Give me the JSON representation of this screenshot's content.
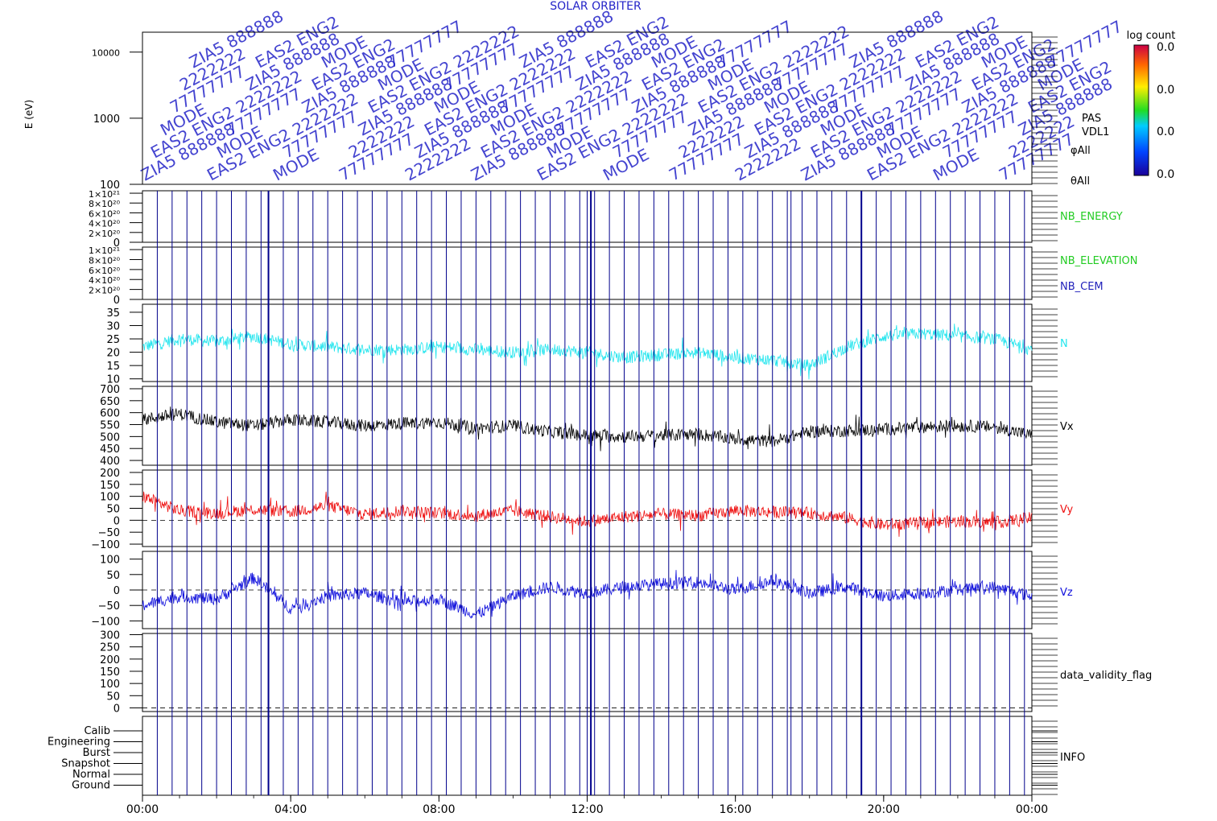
{
  "header": {
    "title": "SOLAR ORBITER",
    "overlay_text": "EAS2 ENG2 MODE ZIA5 888888 77777777 2222222"
  },
  "colors": {
    "axis": "#000000",
    "overlay_blue": "#2424c8",
    "event_line": "#00008b",
    "density": "#22e5ee",
    "vx": "#000000",
    "vy": "#ee1111",
    "vz": "#1111dd",
    "label_green": "#22cc22",
    "label_blue": "#2222bb"
  },
  "colorbar": {
    "title": "log count",
    "ticks": [
      "0.0",
      "0.0",
      "0.0",
      "0.0"
    ]
  },
  "spectrogram_labels": [
    "PAS",
    "VDL1",
    "φAll",
    "θAll"
  ],
  "chart_data": [
    {
      "id": "spectrogram",
      "type": "heatmap",
      "ylabel": "E (eV)",
      "yscale": "log",
      "ylim": [
        100,
        20000
      ],
      "yticks": [
        "10000",
        "1000",
        "100"
      ],
      "ytick_values": [
        10000,
        1000,
        100
      ]
    },
    {
      "id": "nb_energy",
      "type": "line",
      "ylim": [
        0,
        1.05e+21
      ],
      "ytick_values": [
        1e+21,
        8e+20,
        6e+20,
        4e+20,
        2e+20,
        0
      ],
      "yticks": [
        "1×10²¹",
        "8×10²⁰",
        "6×10²⁰",
        "4×10²⁰",
        "2×10²⁰",
        "0"
      ],
      "series": [
        {
          "name": "NB_ENERGY",
          "color": "#22cc22",
          "values": []
        }
      ]
    },
    {
      "id": "nb_elevation",
      "type": "line",
      "ylim": [
        0,
        1.05e+21
      ],
      "ytick_values": [
        1e+21,
        8e+20,
        6e+20,
        4e+20,
        2e+20,
        0
      ],
      "yticks": [
        "1×10²¹",
        "8×10²⁰",
        "6×10²⁰",
        "4×10²⁰",
        "2×10²⁰",
        "0"
      ],
      "series": [
        {
          "name": "NB_ELEVATION",
          "color": "#22cc22",
          "values": []
        },
        {
          "name": "NB_CEM",
          "color": "#2222bb",
          "values": []
        }
      ]
    },
    {
      "id": "density",
      "type": "line",
      "ylim": [
        9,
        38
      ],
      "ytick_values": [
        35,
        30,
        25,
        20,
        15,
        10
      ],
      "yticks": [
        "35",
        "30",
        "25",
        "20",
        "15",
        "10"
      ],
      "series": [
        {
          "name": "N",
          "color": "#22e5ee",
          "x": [
            0,
            1,
            2,
            3,
            4,
            5,
            6,
            7,
            8,
            9,
            10,
            11,
            12,
            13,
            14,
            15,
            16,
            17,
            18,
            19,
            20,
            21,
            22,
            23,
            24
          ],
          "values": [
            22,
            25,
            24,
            26,
            23,
            22,
            21,
            21,
            22,
            21,
            20,
            21,
            20,
            18,
            19,
            20,
            18,
            17,
            15,
            22,
            26,
            27,
            26,
            25,
            21
          ]
        }
      ]
    },
    {
      "id": "vx",
      "type": "line",
      "ylim": [
        380,
        710
      ],
      "ytick_values": [
        700,
        650,
        600,
        550,
        500,
        450,
        400
      ],
      "yticks": [
        "700",
        "650",
        "600",
        "550",
        "500",
        "450",
        "400"
      ],
      "series": [
        {
          "name": "Vx",
          "color": "#000000",
          "x": [
            0,
            1,
            2,
            3,
            4,
            5,
            6,
            7,
            8,
            9,
            10,
            11,
            12,
            13,
            14,
            15,
            16,
            17,
            18,
            19,
            20,
            21,
            22,
            23,
            24
          ],
          "values": [
            570,
            595,
            560,
            545,
            570,
            560,
            545,
            555,
            560,
            535,
            545,
            520,
            505,
            500,
            505,
            510,
            490,
            480,
            520,
            525,
            530,
            540,
            545,
            540,
            505
          ]
        }
      ]
    },
    {
      "id": "vy",
      "type": "line",
      "ylim": [
        -110,
        210
      ],
      "ytick_values": [
        200,
        150,
        100,
        50,
        0,
        -50,
        -100
      ],
      "yticks": [
        "200",
        "150",
        "100",
        "50",
        "0",
        "−50",
        "−100"
      ],
      "series": [
        {
          "name": "Vy",
          "color": "#ee1111",
          "x": [
            0,
            1,
            2,
            3,
            4,
            5,
            6,
            7,
            8,
            9,
            10,
            11,
            12,
            13,
            14,
            15,
            16,
            17,
            18,
            19,
            20,
            21,
            22,
            23,
            24
          ],
          "values": [
            100,
            40,
            30,
            45,
            35,
            60,
            25,
            40,
            30,
            20,
            40,
            15,
            -5,
            15,
            25,
            20,
            40,
            35,
            30,
            10,
            -20,
            -10,
            -5,
            -10,
            10
          ]
        }
      ]
    },
    {
      "id": "vz",
      "type": "line",
      "ylim": [
        -125,
        125
      ],
      "ytick_values": [
        100,
        50,
        0,
        -50,
        -100
      ],
      "yticks": [
        "100",
        "50",
        "0",
        "−50",
        "−100"
      ],
      "series": [
        {
          "name": "Vz",
          "color": "#1111dd",
          "x": [
            0,
            1,
            2,
            3,
            4,
            5,
            6,
            7,
            8,
            9,
            10,
            11,
            12,
            13,
            14,
            15,
            16,
            17,
            18,
            19,
            20,
            21,
            22,
            23,
            24
          ],
          "values": [
            -50,
            -20,
            -30,
            40,
            -60,
            -20,
            -10,
            -40,
            -30,
            -80,
            -20,
            10,
            -10,
            10,
            20,
            25,
            0,
            30,
            -10,
            10,
            -20,
            -10,
            0,
            10,
            -20
          ]
        }
      ]
    },
    {
      "id": "data_validity",
      "type": "line",
      "ylim": [
        -15,
        305
      ],
      "ytick_values": [
        300,
        250,
        200,
        150,
        100,
        50,
        0
      ],
      "yticks": [
        "300",
        "250",
        "200",
        "150",
        "100",
        "50",
        "0"
      ],
      "series": [
        {
          "name": "data_validity_flag",
          "color": "#000000",
          "values": []
        }
      ]
    },
    {
      "id": "info",
      "type": "table",
      "rows": [
        "Calib",
        "Engineering",
        "Burst",
        "Snapshot",
        "Normal",
        "Ground"
      ],
      "series": [
        {
          "name": "INFO",
          "color": "#000000",
          "values": []
        }
      ]
    }
  ],
  "x_axis": {
    "ticks": [
      "00:00",
      "04:00",
      "08:00",
      "12:00",
      "16:00",
      "20:00",
      "00:00"
    ],
    "tick_hours": [
      0,
      4,
      8,
      12,
      16,
      20,
      24
    ]
  },
  "event_lines_hours": [
    0.4,
    0.8,
    1.2,
    1.6,
    2.0,
    2.4,
    2.8,
    3.2,
    3.4,
    3.8,
    4.2,
    4.6,
    5.0,
    5.4,
    5.8,
    6.2,
    6.6,
    7.0,
    7.4,
    7.8,
    8.2,
    8.6,
    9.0,
    9.4,
    9.8,
    10.2,
    10.6,
    11.0,
    11.4,
    11.8,
    12.0,
    12.1,
    12.2,
    12.6,
    13.0,
    13.4,
    13.8,
    14.2,
    14.6,
    15.0,
    15.4,
    15.8,
    16.2,
    16.6,
    17.0,
    17.4,
    17.5,
    17.8,
    18.2,
    18.6,
    19.0,
    19.4,
    19.8,
    20.2,
    20.6,
    21.0,
    21.4,
    21.8,
    22.2,
    22.6,
    23.0,
    23.4,
    23.8
  ]
}
